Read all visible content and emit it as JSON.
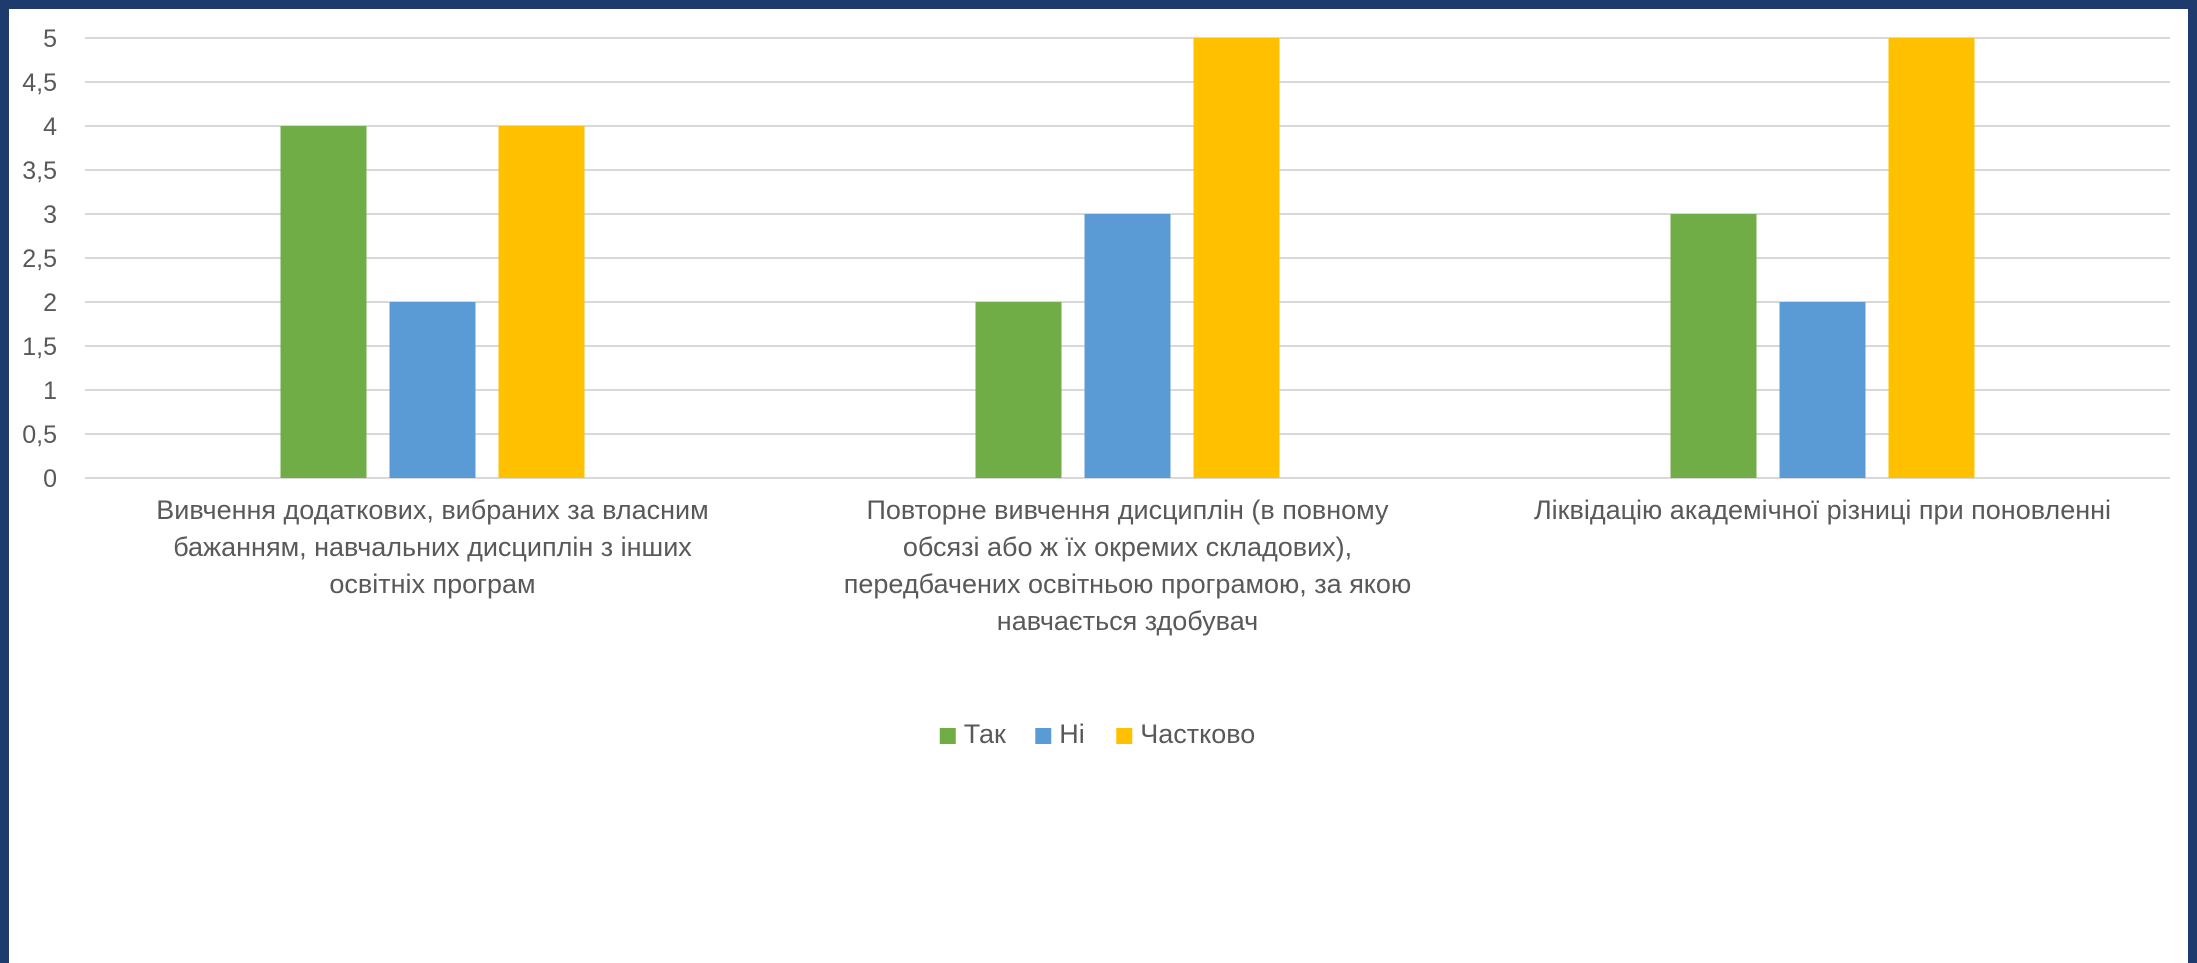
{
  "chart_data": {
    "type": "bar",
    "categories": [
      [
        "Вивчення додаткових, вибраних за власним",
        "бажанням, навчальних дисциплін з інших",
        "освітніх програм"
      ],
      [
        "Повторне вивчення дисциплін (в повному",
        "обсязі або ж їх окремих складових),",
        "передбачених освітньою програмою, за якою",
        "навчається здобувач"
      ],
      [
        "Ліквідацію академічної різниці при поновленні"
      ]
    ],
    "series": [
      {
        "name": "Так",
        "color": "#70ad47",
        "values": [
          4,
          2,
          3
        ]
      },
      {
        "name": "Ні",
        "color": "#5b9bd5",
        "values": [
          2,
          3,
          2
        ]
      },
      {
        "name": "Частково",
        "color": "#ffc000",
        "values": [
          4,
          5,
          5
        ]
      }
    ],
    "ylim": [
      0,
      5
    ],
    "yticks": [
      "0",
      "0,5",
      "1",
      "1,5",
      "2",
      "2,5",
      "3",
      "3,5",
      "4",
      "4,5",
      "5"
    ],
    "grid": true,
    "legend": "bottom"
  }
}
